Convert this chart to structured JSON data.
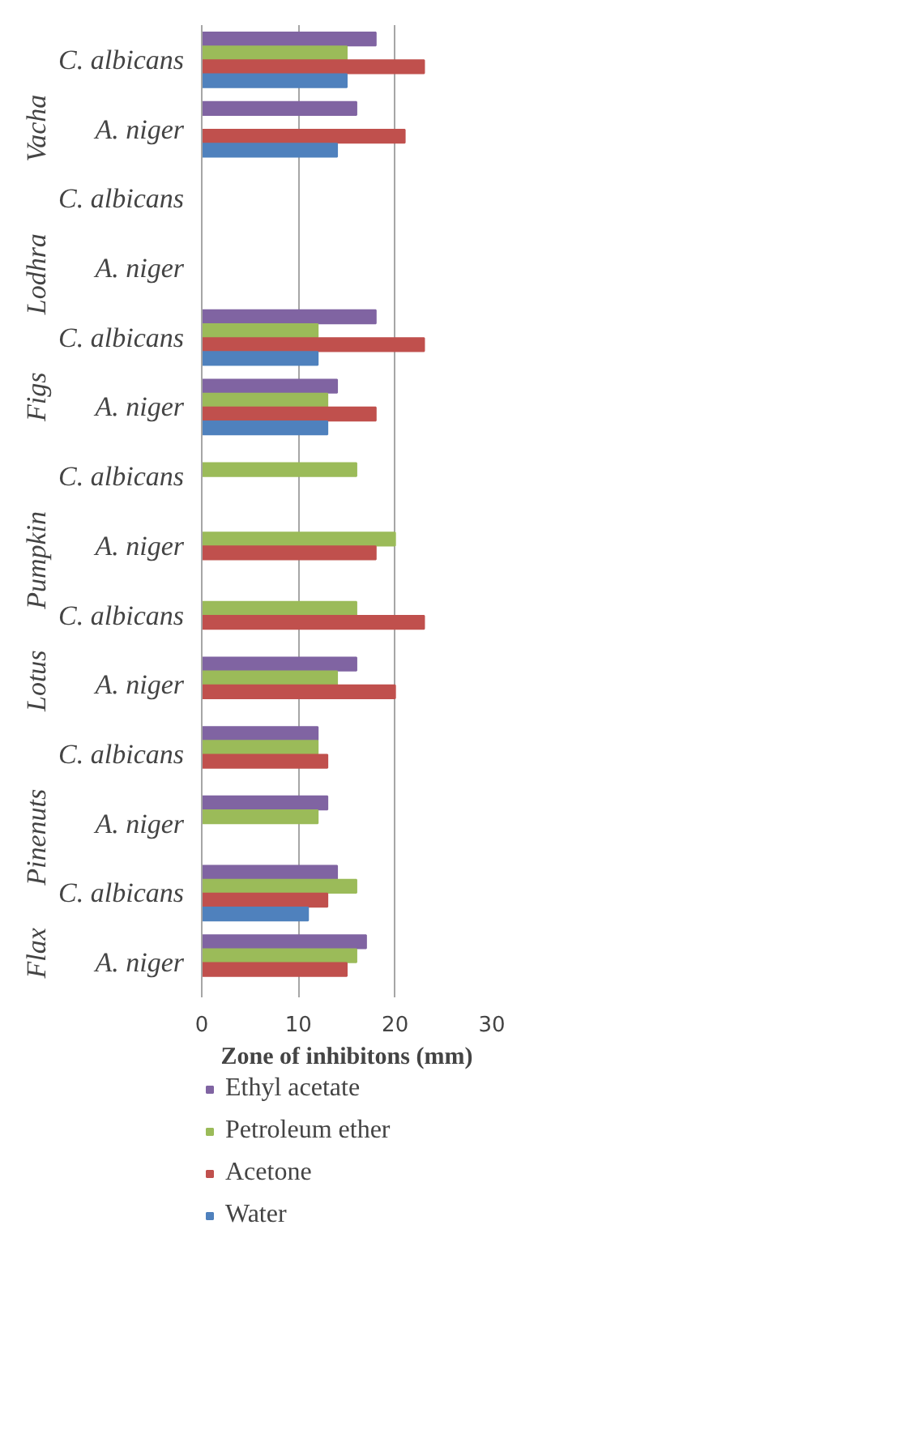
{
  "chart_data": {
    "type": "bar",
    "orientation": "horizontal",
    "categories": [
      "C. albicans",
      "A. niger",
      "C. albicans",
      "A. niger",
      "C. albicans",
      "A. niger",
      "C. albicans",
      "A. niger",
      "C. albicans",
      "A. niger",
      "C. albicans",
      "A. niger",
      "C. albicans",
      "A. niger"
    ],
    "annotations": [
      "Vacha",
      "Lodhra",
      "Figs",
      "Pumpkin",
      "Lotus",
      "Pinenuts",
      "Flax"
    ],
    "xlabel": "Zone of inhibitons (mm)",
    "xlim": [
      0,
      30
    ],
    "xticks": [
      0,
      10,
      20,
      30
    ],
    "grid": "x",
    "legend": "bottom",
    "series": [
      {
        "name": "Ethyl acetate",
        "color": "#8064a2",
        "values": [
          18,
          16,
          null,
          null,
          18,
          14,
          null,
          null,
          null,
          16,
          12,
          13,
          14,
          17
        ]
      },
      {
        "name": "Petroleum ether",
        "color": "#9bbb59",
        "values": [
          15,
          null,
          null,
          null,
          12,
          13,
          16,
          20,
          16,
          14,
          12,
          12,
          16,
          16
        ]
      },
      {
        "name": "Acetone",
        "color": "#c0504d",
        "values": [
          23,
          21,
          null,
          null,
          23,
          18,
          null,
          18,
          23,
          20,
          13,
          null,
          13,
          15
        ]
      },
      {
        "name": "Water",
        "color": "#4f81bd",
        "values": [
          15,
          14,
          null,
          null,
          12,
          13,
          null,
          null,
          null,
          null,
          null,
          null,
          11,
          null
        ]
      }
    ]
  }
}
